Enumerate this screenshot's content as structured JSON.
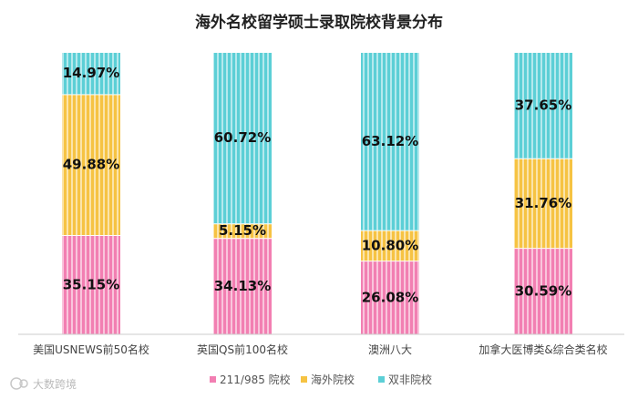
{
  "chart_data": {
    "type": "bar",
    "stacked": true,
    "title": "海外名校留学硕士录取院校背景分布",
    "categories": [
      "美国USNEWS前50名校",
      "英国QS前100名校",
      "澳洲八大",
      "加拿大医博类&综合类名校"
    ],
    "series": [
      {
        "name": "211/985 院校",
        "color": "#f27fb2",
        "values": [
          35.15,
          34.13,
          26.08,
          30.59
        ],
        "labels": [
          "35.15%",
          "34.13%",
          "26.08%",
          "30.59%"
        ]
      },
      {
        "name": "海外院校",
        "color": "#f6c343",
        "values": [
          49.88,
          5.15,
          10.8,
          31.76
        ],
        "labels": [
          "49.88%",
          "5.15%",
          "10.80%",
          "31.76%"
        ]
      },
      {
        "name": "双非院校",
        "color": "#5ccfd6",
        "values": [
          14.97,
          60.72,
          63.12,
          37.65
        ],
        "labels": [
          "14.97%",
          "60.72%",
          "63.12%",
          "37.65%"
        ]
      }
    ],
    "ylim": [
      0,
      100
    ],
    "grid": false,
    "legend": "bottom"
  },
  "watermark": "大数跨境"
}
